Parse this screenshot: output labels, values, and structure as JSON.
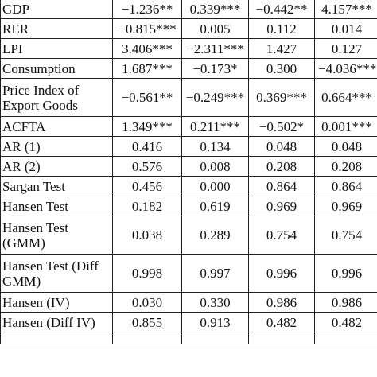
{
  "table": {
    "rows": [
      {
        "label": "GDP",
        "values": [
          "−1.236**",
          "0.339***",
          "−0.442**",
          "4.157***"
        ],
        "two_line": false
      },
      {
        "label": "RER",
        "values": [
          "−0.815***",
          "0.005",
          "0.112",
          "0.014"
        ],
        "two_line": false
      },
      {
        "label": "LPI",
        "values": [
          "3.406***",
          "−2.311***",
          "1.427",
          "0.127"
        ],
        "two_line": false
      },
      {
        "label": "Consumption",
        "values": [
          "1.687***",
          "−0.173*",
          "0.300",
          "−4.036***"
        ],
        "two_line": false
      },
      {
        "label": "Price Index of Export Goods",
        "values": [
          "−0.561**",
          "−0.249***",
          "0.369***",
          "0.664***"
        ],
        "two_line": true
      },
      {
        "label": "ACFTA",
        "values": [
          "1.349***",
          "0.211***",
          "−0.502*",
          "0.001***"
        ],
        "two_line": false
      },
      {
        "label": "AR (1)",
        "values": [
          "0.416",
          "0.134",
          "0.048",
          "0.048"
        ],
        "two_line": false
      },
      {
        "label": "AR (2)",
        "values": [
          "0.576",
          "0.008",
          "0.208",
          "0.208"
        ],
        "two_line": false
      },
      {
        "label": "Sargan Test",
        "values": [
          "0.456",
          "0.000",
          "0.864",
          "0.864"
        ],
        "two_line": false
      },
      {
        "label": "Hansen Test",
        "values": [
          "0.182",
          "0.619",
          "0.969",
          "0.969"
        ],
        "two_line": false
      },
      {
        "label": "Hansen Test (GMM)",
        "values": [
          "0.038",
          "0.289",
          "0.754",
          "0.754"
        ],
        "two_line": true
      },
      {
        "label": "Hansen Test (Diff GMM)",
        "values": [
          "0.998",
          "0.997",
          "0.996",
          "0.996"
        ],
        "two_line": true
      },
      {
        "label": "Hansen (IV)",
        "values": [
          "0.030",
          "0.330",
          "0.986",
          "0.986"
        ],
        "two_line": false
      },
      {
        "label": "Hansen (Diff IV)",
        "values": [
          "0.855",
          "0.913",
          "0.482",
          "0.482"
        ],
        "two_line": false
      }
    ]
  }
}
